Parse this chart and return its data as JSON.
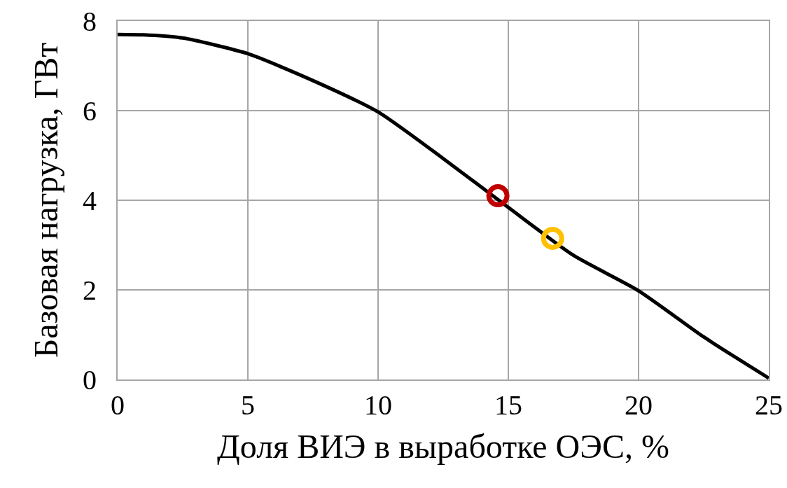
{
  "chart_data": {
    "type": "line",
    "xlabel": "Доля ВИЭ в выработке ОЭС, %",
    "ylabel": "Базовая нагрузка, ГВт",
    "series": [
      {
        "type": "line",
        "color": "#000000",
        "marker": "none",
        "x": [
          0,
          1,
          2.5,
          5,
          7.5,
          10,
          12.5,
          15,
          17.5,
          20,
          22.5,
          25
        ],
        "values": [
          7.7,
          7.69,
          7.62,
          7.27,
          6.67,
          5.97,
          4.93,
          3.84,
          2.77,
          1.98,
          0.95,
          0.03
        ]
      },
      {
        "type": "scatter",
        "color": "#c00000",
        "marker": "circle",
        "x": [
          14.6
        ],
        "values": [
          4.1
        ]
      },
      {
        "type": "scatter",
        "color": "#ffc000",
        "marker": "circle",
        "x": [
          16.7
        ],
        "values": [
          3.15
        ]
      }
    ],
    "xlim": [
      0,
      25
    ],
    "xticks": [
      0,
      5,
      10,
      15,
      20,
      25
    ],
    "ylim": [
      0,
      8
    ],
    "yticks": [
      0,
      2,
      4,
      6,
      8
    ],
    "grid": true
  }
}
